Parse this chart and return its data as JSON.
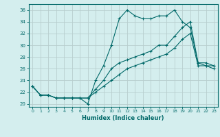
{
  "title": "",
  "xlabel": "Humidex (Indice chaleur)",
  "ylabel": "",
  "background_color": "#d4eeee",
  "grid_color": "#b8cece",
  "line_color": "#006868",
  "xlim": [
    -0.5,
    23.5
  ],
  "ylim": [
    19.5,
    37
  ],
  "yticks": [
    20,
    22,
    24,
    26,
    28,
    30,
    32,
    34,
    36
  ],
  "xticks": [
    0,
    1,
    2,
    3,
    4,
    5,
    6,
    7,
    8,
    9,
    10,
    11,
    12,
    13,
    14,
    15,
    16,
    17,
    18,
    19,
    20,
    21,
    22,
    23
  ],
  "series1_x": [
    0,
    1,
    2,
    3,
    4,
    5,
    6,
    7,
    8,
    9,
    10,
    11,
    12,
    13,
    14,
    15,
    16,
    17,
    18,
    19,
    20,
    21,
    22,
    23
  ],
  "series1_y": [
    23,
    21.5,
    21.5,
    21,
    21,
    21,
    21,
    20,
    24,
    26.5,
    30,
    34.5,
    36,
    35,
    34.5,
    34.5,
    35,
    35,
    36,
    34,
    33,
    27,
    26.5,
    26.5
  ],
  "series2_x": [
    0,
    1,
    2,
    3,
    4,
    5,
    6,
    7,
    8,
    9,
    10,
    11,
    12,
    13,
    14,
    15,
    16,
    17,
    18,
    19,
    20,
    21,
    22,
    23
  ],
  "series2_y": [
    23,
    21.5,
    21.5,
    21,
    21,
    21,
    21,
    21,
    22.5,
    24,
    26,
    27,
    27.5,
    28,
    28.5,
    29,
    30,
    30,
    31.5,
    33,
    34,
    27,
    27,
    26.5
  ],
  "series3_x": [
    0,
    1,
    2,
    3,
    4,
    5,
    6,
    7,
    8,
    9,
    10,
    11,
    12,
    13,
    14,
    15,
    16,
    17,
    18,
    19,
    20,
    21,
    22,
    23
  ],
  "series3_y": [
    23,
    21.5,
    21.5,
    21,
    21,
    21,
    21,
    21,
    22,
    23,
    24,
    25,
    26,
    26.5,
    27,
    27.5,
    28,
    28.5,
    29.5,
    31,
    32,
    26.5,
    26.5,
    26
  ]
}
